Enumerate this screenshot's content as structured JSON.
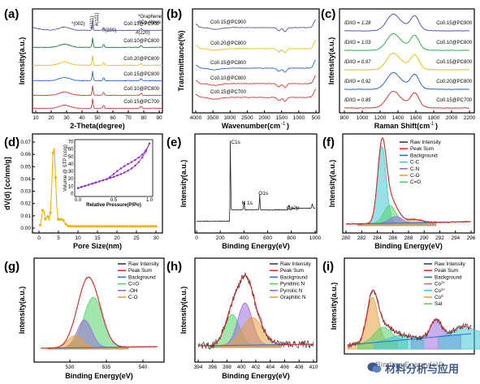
{
  "panels": {
    "a": {
      "label": "(a)",
      "xlabel": "2-Theta(degree)",
      "ylabel": "Intensity(a.u.)",
      "xticks": [
        "10",
        "20",
        "30",
        "40",
        "50",
        "60",
        "70",
        "80",
        "90"
      ],
      "legend": [
        "*Graphene",
        "#Co alloys"
      ],
      "peaks": [
        "*(002)",
        "#(111)",
        "#(111)",
        "#(200)",
        "#(220)"
      ],
      "curve_labels": [
        "Co0.15@PC900",
        "Co0.10@PC800",
        "Co0.20@PC800",
        "Co0.15@PC800",
        "Co0.10@PC800",
        "Co0.15@PC700"
      ]
    },
    "b": {
      "label": "(b)",
      "xlabel": "Wavenumber(cm",
      "xlabel_sup": "-1",
      "xlabel_end": ")",
      "ylabel": "Transmittance(%)",
      "xticks": [
        "4000",
        "3500",
        "3000",
        "2500",
        "2000",
        "1500",
        "1000",
        "500"
      ],
      "curve_labels": [
        "Co0.15@PC900",
        "Co0.20@PC800",
        "Co0.15@PC800",
        "Co0.10@PC800",
        "Co0.15@PC700"
      ]
    },
    "c": {
      "label": "(c)",
      "xlabel": "Raman Shift(cm",
      "xlabel_sup": "-1",
      "xlabel_end": ")",
      "ylabel": "Intensity(a.u.)",
      "xticks": [
        "800",
        "1000",
        "1200",
        "1400",
        "1600",
        "1800",
        "2000",
        "2200"
      ],
      "ratios": [
        "ID/IG = 1.28",
        "ID/IG = 1.03",
        "ID/IG = 0.97",
        "ID/IG = 0.92",
        "ID/IG = 0.85"
      ],
      "curve_labels": [
        "Co0.15@PC900",
        "Co0.10@PC800",
        "Co0.15@PC800",
        "Co0.20@PC800",
        "Co0.15@PC700"
      ]
    },
    "d": {
      "label": "(d)",
      "xlabel": "Pore Size(nm)",
      "ylabel": "dV(d) [cc/nm/g]",
      "xticks": [
        "0",
        "5",
        "10",
        "15",
        "20",
        "25",
        "30"
      ],
      "yticks": [
        "0.00",
        "0.01",
        "0.02",
        "0.03",
        "0.04",
        "0.05",
        "0.06",
        "0.07"
      ],
      "inset_xlabel": "Relative Pressure(P/Po)",
      "inset_ylabel": "Volume @ STP (cc/g)",
      "inset_xticks": [
        "0.0",
        "0.5",
        "1.0"
      ],
      "inset_yticks": [
        "0",
        "10",
        "20",
        "30",
        "40",
        "50",
        "60",
        "70"
      ]
    },
    "e": {
      "label": "(e)",
      "xlabel": "Binding Energy(eV)",
      "ylabel": "Intensity(a.u.)",
      "xticks": [
        "0",
        "200",
        "400",
        "600",
        "800",
        "1000"
      ],
      "peaks": [
        "C1s",
        "N 1s",
        "O1s",
        "Co2p"
      ]
    },
    "f": {
      "label": "(f)",
      "xlabel": "Binding Energy(eV)",
      "ylabel": "Intensity(a.u.)",
      "xticks": [
        "280",
        "282",
        "284",
        "286",
        "288",
        "290",
        "292",
        "294",
        "296"
      ],
      "legend": [
        "Raw Intensity",
        "Peak Sum",
        "Background",
        "C-C",
        "C-N",
        "C-O",
        "C=O"
      ]
    },
    "g": {
      "label": "(g)",
      "xlabel": "Binding Energy(eV)",
      "ylabel": "Intensity(a.u.)",
      "xticks": [
        "530",
        "535",
        "540"
      ],
      "legend": [
        "Raw Intensity",
        "Peak Sum",
        "Background",
        "C=O",
        "-OH",
        "C-O"
      ]
    },
    "h": {
      "label": "(h)",
      "xlabel": "Binding Energy(eV)",
      "ylabel": "Intensity(a.u.)",
      "xticks": [
        "394",
        "396",
        "398",
        "400",
        "402",
        "404",
        "406",
        "408",
        "410"
      ],
      "legend": [
        "Raw Intensity",
        "Peak Sum",
        "Background",
        "Pyridinic N",
        "Pyrrolic N",
        "Graphitic N"
      ]
    },
    "i": {
      "label": "(i)",
      "xlabel": "Binding Energy(eV)",
      "ylabel": "Intensity(a.u.)",
      "legend": [
        "Raw Intensity",
        "Peak Sum",
        "Background",
        "Co3+",
        "Co2+",
        "Co0",
        "Sat"
      ]
    }
  },
  "watermark": "材料分析与应用",
  "colors": {
    "raw": "#3a3a3a",
    "sum": "#e0302a",
    "bg": "#2b6fd6",
    "green": "#53d46a",
    "purple": "#9b6cd8",
    "orange": "#e8a13c",
    "cyan": "#42c7d6",
    "xrd": [
      "#5a5aa8",
      "#1f7a3e",
      "#e5c11a",
      "#2a6ab8",
      "#d63a3a",
      "#d63a3a"
    ],
    "gold": "#f0b400"
  }
}
